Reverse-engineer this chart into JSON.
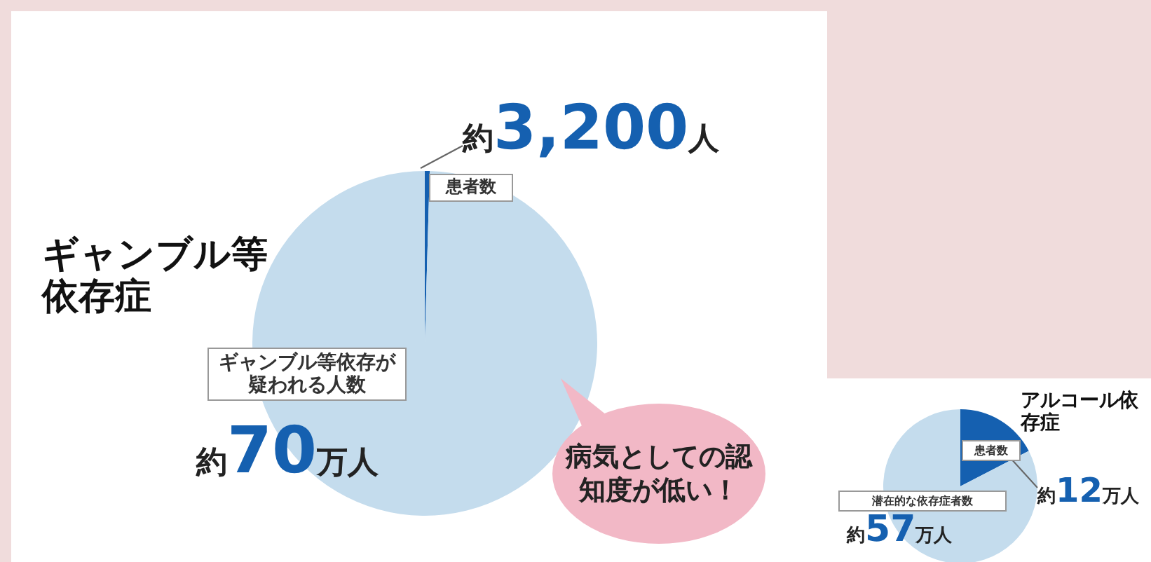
{
  "chart_data": [
    {
      "type": "pie",
      "title": "ギャンブル等依存症",
      "categories": [
        "患者数",
        "ギャンブル等依存が疑われる人数"
      ],
      "values": [
        3200,
        700000
      ],
      "value_labels": [
        "約3,200人",
        "約70万人"
      ],
      "colors": [
        "#1560b0",
        "#c4dced"
      ],
      "legend": false,
      "annotations": [
        "病気としての認知度が低い！"
      ]
    },
    {
      "type": "pie",
      "title": "アルコール依存症",
      "categories": [
        "患者数",
        "潜在的な依存症者数"
      ],
      "values": [
        12,
        57
      ],
      "value_labels": [
        "約12万人",
        "約57万人"
      ],
      "colors": [
        "#1560b0",
        "#c4dced"
      ],
      "legend": false
    }
  ]
}
